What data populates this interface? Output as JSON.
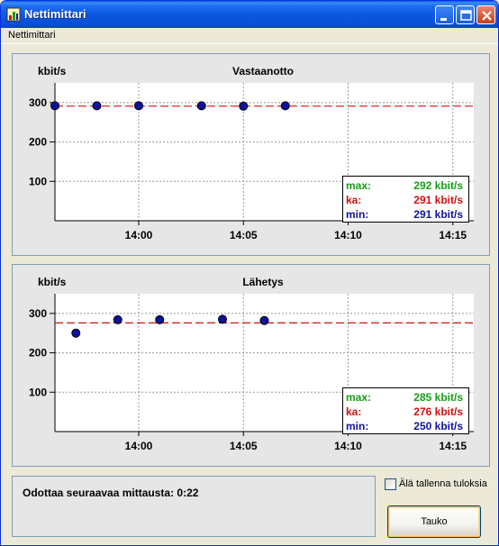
{
  "window": {
    "title": "Nettimittari",
    "menu": [
      "Nettimittari"
    ]
  },
  "charts": [
    {
      "title": "Vastaanotto",
      "ylabel": "kbit/s",
      "stats": {
        "max_label": "max:",
        "max_value": "292 kbit/s",
        "avg_label": "ka:",
        "avg_value": "291 kbit/s",
        "min_label": "min:",
        "min_value": "291 kbit/s"
      }
    },
    {
      "title": "Lähetys",
      "ylabel": "kbit/s",
      "stats": {
        "max_label": "max:",
        "max_value": "285 kbit/s",
        "avg_label": "ka:",
        "avg_value": "276 kbit/s",
        "min_label": "min:",
        "min_value": "250 kbit/s"
      }
    }
  ],
  "chart_data": [
    {
      "type": "scatter",
      "title": "Vastaanotto",
      "ylabel": "kbit/s",
      "xlabel": "",
      "x_ticks": [
        "14:00",
        "14:05",
        "14:10",
        "14:15"
      ],
      "y_ticks": [
        100,
        200,
        300
      ],
      "xlim": [
        "13:56",
        "14:16"
      ],
      "ylim": [
        0,
        350
      ],
      "grid": true,
      "average_line": 291,
      "points": [
        {
          "x": "13:56",
          "y": 292
        },
        {
          "x": "13:58",
          "y": 292
        },
        {
          "x": "14:00",
          "y": 292
        },
        {
          "x": "14:03",
          "y": 292
        },
        {
          "x": "14:05",
          "y": 291
        },
        {
          "x": "14:07",
          "y": 292
        }
      ],
      "colors": {
        "point": "#1010a0",
        "average_line": "#d21010",
        "grid": "#999999"
      }
    },
    {
      "type": "scatter",
      "title": "Lähetys",
      "ylabel": "kbit/s",
      "xlabel": "",
      "x_ticks": [
        "14:00",
        "14:05",
        "14:10",
        "14:15"
      ],
      "y_ticks": [
        100,
        200,
        300
      ],
      "xlim": [
        "13:56",
        "14:16"
      ],
      "ylim": [
        0,
        350
      ],
      "grid": true,
      "average_line": 276,
      "points": [
        {
          "x": "13:57",
          "y": 250
        },
        {
          "x": "13:59",
          "y": 284
        },
        {
          "x": "14:01",
          "y": 284
        },
        {
          "x": "14:04",
          "y": 285
        },
        {
          "x": "14:06",
          "y": 282
        }
      ],
      "colors": {
        "point": "#1010a0",
        "average_line": "#d21010",
        "grid": "#999999"
      }
    }
  ],
  "status": {
    "message": "Odottaa seuraavaa mittausta: 0:22"
  },
  "options": {
    "dont_save_label": "Älä tallenna tuloksia",
    "dont_save_checked": false
  },
  "buttons": {
    "pause_label": "Tauko"
  },
  "colors": {
    "titlebar": "#0b56e0",
    "max": "#14a014",
    "avg": "#d21010",
    "min": "#0f12a0"
  }
}
